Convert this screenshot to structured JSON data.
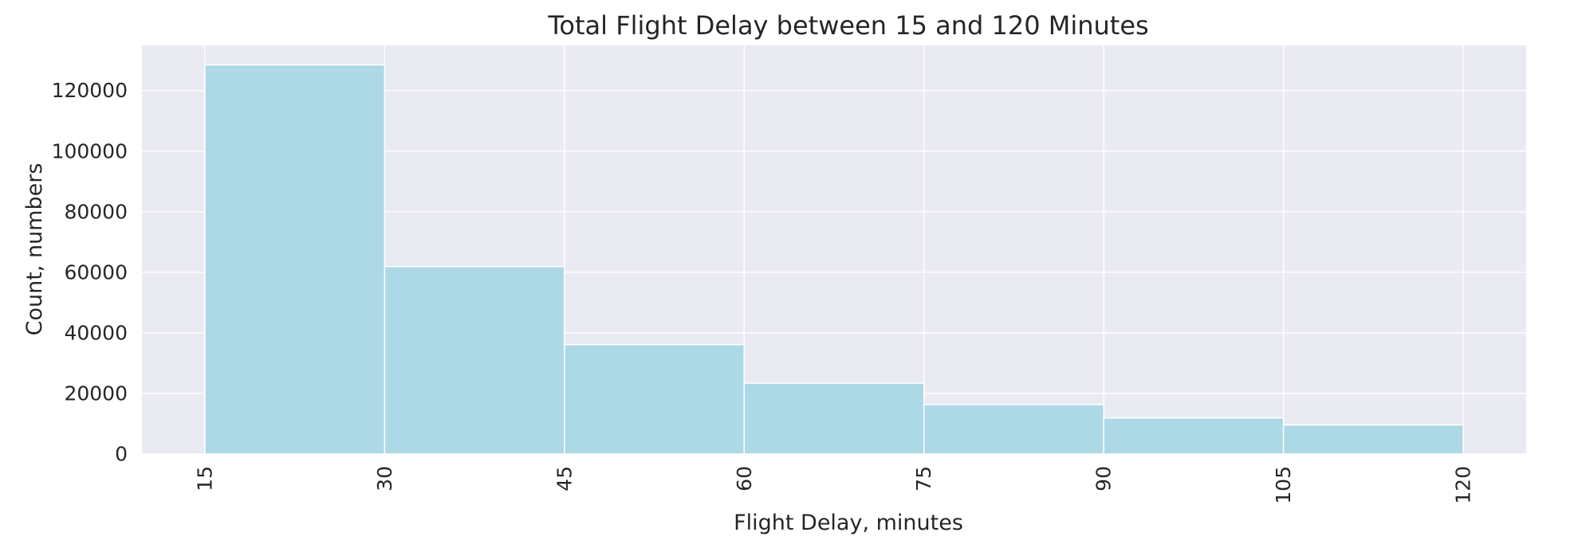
{
  "chart_data": {
    "type": "bar",
    "title": "Total Flight Delay between 15 and 120 Minutes",
    "xlabel": "Flight Delay, minutes",
    "ylabel": "Count, numbers",
    "bin_edges": [
      15,
      30,
      45,
      60,
      75,
      90,
      105,
      120
    ],
    "values": [
      128500,
      61900,
      36100,
      23400,
      16300,
      11900,
      9600
    ],
    "x_ticks": [
      "15",
      "30",
      "45",
      "60",
      "75",
      "90",
      "105",
      "120"
    ],
    "y_ticks": [
      "0",
      "20000",
      "40000",
      "60000",
      "80000",
      "100000",
      "120000"
    ],
    "xlim": [
      9.75,
      125.25
    ],
    "ylim": [
      0,
      134925
    ],
    "grid": true,
    "colors": {
      "bar": "#add8e6",
      "plot_background": "#eaeaf2",
      "grid": "#ffffff",
      "bar_edge": "#ffffff"
    }
  }
}
